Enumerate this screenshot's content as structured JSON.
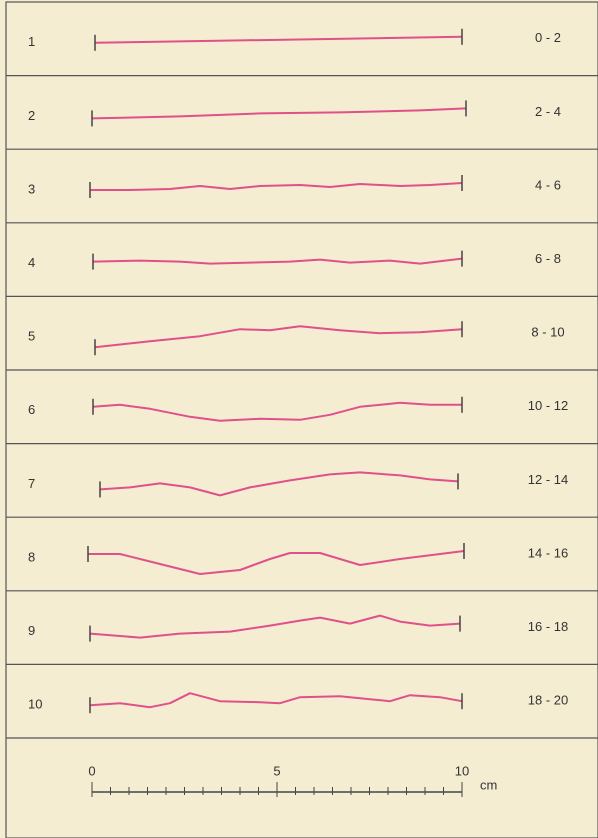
{
  "rows": [
    {
      "number": "1",
      "range": "0 - 2"
    },
    {
      "number": "2",
      "range": "2 - 4"
    },
    {
      "number": "3",
      "range": "4 - 6"
    },
    {
      "number": "4",
      "range": "6 - 8"
    },
    {
      "number": "5",
      "range": "8 - 10"
    },
    {
      "number": "6",
      "range": "10 - 12"
    },
    {
      "number": "7",
      "range": "12 - 14"
    },
    {
      "number": "8",
      "range": "14 - 16"
    },
    {
      "number": "9",
      "range": "16 - 18"
    },
    {
      "number": "10",
      "range": "18 - 20"
    }
  ],
  "scale": {
    "ticks": [
      "0",
      "5",
      "10"
    ],
    "unit": "cm"
  }
}
